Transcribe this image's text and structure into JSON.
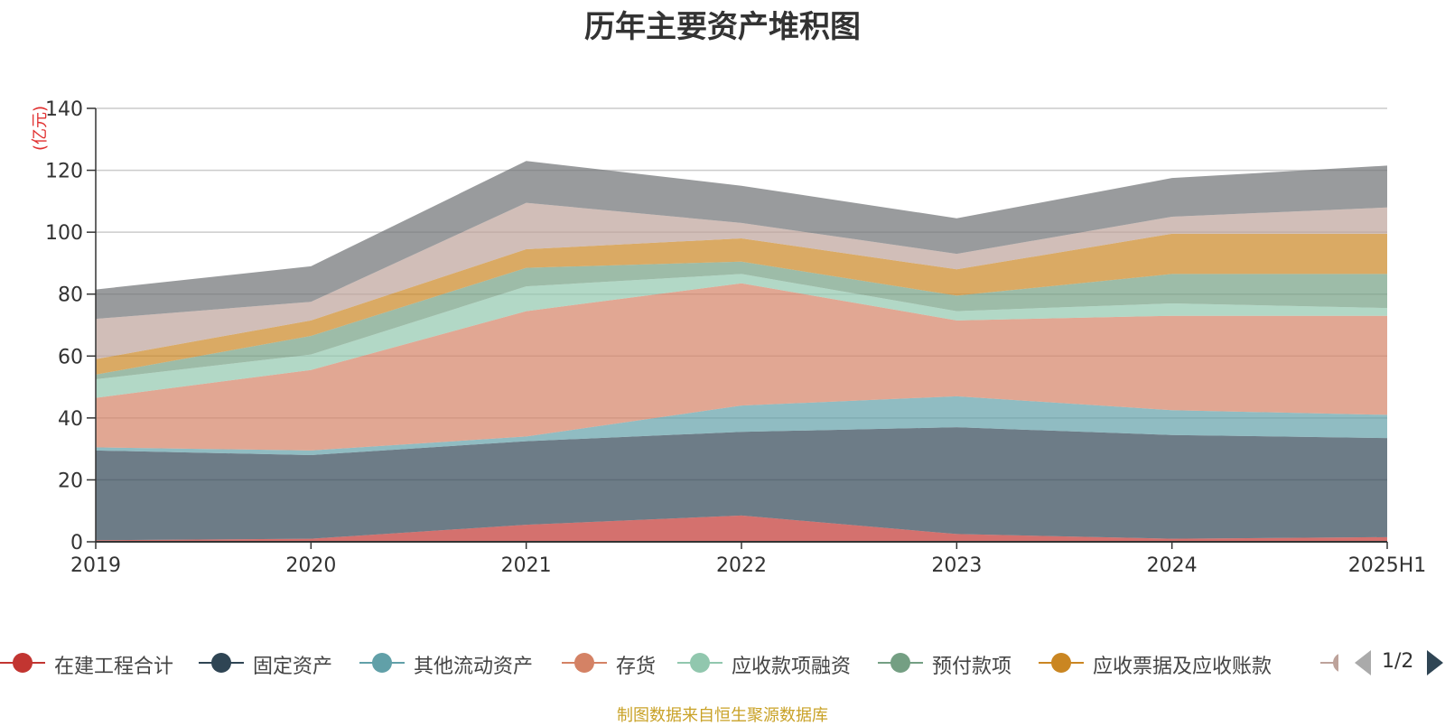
{
  "chart_data": {
    "type": "area",
    "stacked": true,
    "title": "历年主要资产堆积图",
    "ylabel": "(亿元)",
    "ylim": [
      0,
      140
    ],
    "yticks": [
      0,
      20,
      40,
      60,
      80,
      100,
      120,
      140
    ],
    "grid": true,
    "legend_position": "bottom",
    "categories": [
      "2019",
      "2020",
      "2021",
      "2022",
      "2023",
      "2024",
      "2025H1"
    ],
    "series": [
      {
        "name": "在建工程合计",
        "color": "#c23531",
        "values": [
          0.5,
          1,
          5.5,
          8.5,
          2.5,
          1,
          1.5
        ]
      },
      {
        "name": "固定资产",
        "color": "#2f4554",
        "values": [
          29,
          27,
          27,
          27,
          34.5,
          33.5,
          32
        ]
      },
      {
        "name": "其他流动资产",
        "color": "#61a0a8",
        "values": [
          1,
          1.5,
          1.5,
          8.5,
          10,
          8,
          7.5
        ]
      },
      {
        "name": "存货",
        "color": "#d48265",
        "values": [
          16,
          26,
          40.5,
          39.5,
          24.5,
          30.5,
          32
        ]
      },
      {
        "name": "应收款项融资",
        "color": "#91c7ae",
        "values": [
          6,
          5,
          8,
          3,
          3,
          4,
          2.5
        ]
      },
      {
        "name": "预付款项",
        "color": "#749f83",
        "values": [
          1.5,
          6,
          6,
          4,
          5,
          9.5,
          11
        ]
      },
      {
        "name": "应收票据及应收账款",
        "color": "#ca8622",
        "values": [
          5,
          5,
          6,
          7.5,
          8.5,
          13,
          13
        ]
      },
      {
        "name": "",
        "color": "#bda29a",
        "values": [
          13,
          6,
          15,
          5,
          5,
          5.5,
          8.5
        ]
      },
      {
        "name": "",
        "color": "#6e7074",
        "values": [
          9.5,
          11.5,
          13.5,
          12,
          11.5,
          12.5,
          13.5
        ]
      }
    ]
  },
  "legend": {
    "pager_text": "1/2"
  },
  "source_note": "制图数据来自恒生聚源数据库"
}
